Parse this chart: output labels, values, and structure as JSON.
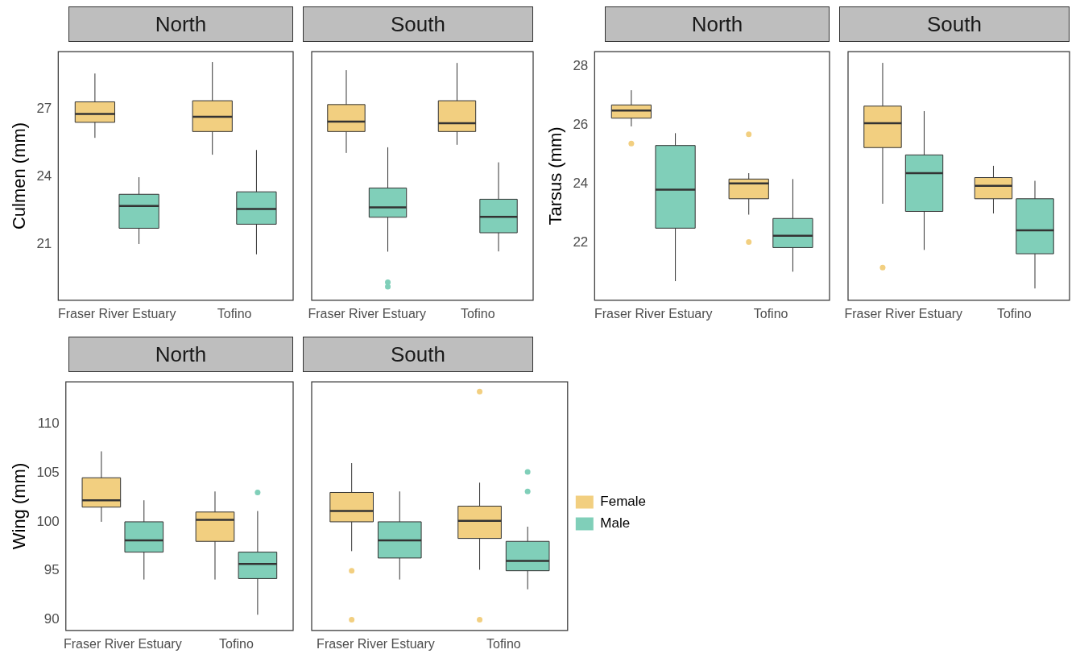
{
  "chart_data": [
    {
      "type": "box",
      "title": "North",
      "ylabel": "Culmen (mm)",
      "categories": [
        "Fraser River Estuary",
        "Tofino"
      ],
      "ylim": [
        18.5,
        29.55
      ],
      "yticks": [
        21,
        24,
        27
      ],
      "legend": false,
      "grid": false,
      "series": [
        {
          "color": "#f2cf80",
          "boxes": [
            {
              "low": 25.72,
              "q1": 26.41,
              "median": 26.78,
              "q3": 27.32,
              "high": 28.58
            },
            {
              "low": 24.97,
              "q1": 26.0,
              "median": 26.66,
              "q3": 27.37,
              "high": 29.09
            }
          ]
        },
        {
          "color": "#80cfb9",
          "boxes": [
            {
              "low": 21.0,
              "q1": 21.7,
              "median": 22.69,
              "q3": 23.21,
              "high": 23.97
            },
            {
              "low": 20.54,
              "q1": 21.88,
              "median": 22.56,
              "q3": 23.32,
              "high": 25.18
            }
          ]
        }
      ]
    },
    {
      "type": "box",
      "title": "South",
      "categories": [
        "Fraser River Estuary",
        "Tofino"
      ],
      "ylim": [
        18.5,
        29.55
      ],
      "yticks": [
        21,
        24,
        27
      ],
      "tick_labels": "x",
      "legend": false,
      "grid": false,
      "series": [
        {
          "color": "#f2cf80",
          "boxes": [
            {
              "low": 25.05,
              "q1": 26.0,
              "median": 26.44,
              "q3": 27.2,
              "high": 28.73
            },
            {
              "low": 25.41,
              "q1": 26.0,
              "median": 26.37,
              "q3": 27.37,
              "high": 29.05
            }
          ]
        },
        {
          "color": "#80cfb9",
          "boxes": [
            {
              "low": 20.66,
              "q1": 22.19,
              "median": 22.63,
              "q3": 23.49,
              "high": 25.3,
              "outliers": [
                19.3,
                19.1
              ]
            },
            {
              "low": 20.67,
              "q1": 21.5,
              "median": 22.21,
              "q3": 22.99,
              "high": 24.63
            }
          ]
        }
      ]
    },
    {
      "type": "box",
      "title": "North",
      "ylabel": "Tarsus (mm)",
      "categories": [
        "Fraser River Estuary",
        "Tofino"
      ],
      "ylim": [
        20.05,
        28.5
      ],
      "yticks": [
        22,
        24,
        26,
        28
      ],
      "legend": false,
      "grid": false,
      "series": [
        {
          "color": "#f2cf80",
          "boxes": [
            {
              "low": 25.96,
              "q1": 26.24,
              "median": 26.5,
              "q3": 26.69,
              "high": 27.19,
              "outliers": [
                25.38
              ]
            },
            {
              "low": 22.96,
              "q1": 23.5,
              "median": 24.02,
              "q3": 24.17,
              "high": 24.37,
              "outliers": [
                25.69,
                22.03
              ]
            }
          ]
        },
        {
          "color": "#80cfb9",
          "boxes": [
            {
              "low": 20.7,
              "q1": 22.5,
              "median": 23.81,
              "q3": 25.31,
              "high": 25.73
            },
            {
              "low": 21.02,
              "q1": 21.84,
              "median": 22.24,
              "q3": 22.83,
              "high": 24.17
            }
          ]
        }
      ]
    },
    {
      "type": "box",
      "title": "South",
      "categories": [
        "Fraser River Estuary",
        "Tofino"
      ],
      "ylim": [
        20.05,
        28.5
      ],
      "yticks": [
        22,
        24,
        26,
        28
      ],
      "tick_labels": "x",
      "legend": false,
      "grid": false,
      "series": [
        {
          "color": "#f2cf80",
          "boxes": [
            {
              "low": 23.33,
              "q1": 25.24,
              "median": 26.07,
              "q3": 26.65,
              "high": 28.12,
              "outliers": [
                21.16
              ]
            },
            {
              "low": 23.0,
              "q1": 23.5,
              "median": 23.94,
              "q3": 24.22,
              "high": 24.62
            }
          ]
        },
        {
          "color": "#80cfb9",
          "boxes": [
            {
              "low": 21.76,
              "q1": 23.07,
              "median": 24.37,
              "q3": 24.99,
              "high": 26.48
            },
            {
              "low": 20.45,
              "q1": 21.63,
              "median": 22.43,
              "q3": 23.5,
              "high": 24.11
            }
          ]
        }
      ]
    },
    {
      "type": "box",
      "title": "North",
      "ylabel": "Wing (mm)",
      "categories": [
        "Fraser River Estuary",
        "Tofino"
      ],
      "ylim": [
        88.9,
        114.3
      ],
      "yticks": [
        90,
        95,
        100,
        105,
        110
      ],
      "legend": false,
      "grid": false,
      "series": [
        {
          "color": "#f2cf80",
          "boxes": [
            {
              "low": 100.0,
              "q1": 101.5,
              "median": 102.2,
              "q3": 104.5,
              "high": 107.2
            },
            {
              "low": 94.1,
              "q1": 98.0,
              "median": 100.2,
              "q3": 101.0,
              "high": 103.1
            }
          ]
        },
        {
          "color": "#80cfb9",
          "boxes": [
            {
              "low": 94.1,
              "q1": 96.9,
              "median": 98.1,
              "q3": 100.0,
              "high": 102.2
            },
            {
              "low": 90.5,
              "q1": 94.2,
              "median": 95.7,
              "q3": 96.9,
              "high": 101.1,
              "outliers": [
                103.0
              ]
            }
          ]
        }
      ]
    },
    {
      "type": "box",
      "title": "South",
      "categories": [
        "Fraser River Estuary",
        "Tofino"
      ],
      "ylim": [
        88.9,
        114.3
      ],
      "yticks": [
        90,
        95,
        100,
        105,
        110
      ],
      "tick_labels": "x",
      "legend": "right",
      "grid": false,
      "series": [
        {
          "name": "Female",
          "color": "#f2cf80",
          "boxes": [
            {
              "low": 97.0,
              "q1": 100.0,
              "median": 101.1,
              "q3": 103.0,
              "high": 106.0,
              "outliers": [
                95.0,
                90.0
              ]
            },
            {
              "low": 95.1,
              "q1": 98.3,
              "median": 100.1,
              "q3": 101.6,
              "high": 104.0,
              "outliers": [
                113.3,
                90.0
              ]
            }
          ]
        },
        {
          "name": "Male",
          "color": "#80cfb9",
          "boxes": [
            {
              "low": 94.1,
              "q1": 96.3,
              "median": 98.1,
              "q3": 100.0,
              "high": 103.1
            },
            {
              "low": 93.1,
              "q1": 95.0,
              "median": 96.0,
              "q3": 98.0,
              "high": 99.5,
              "outliers": [
                105.1,
                103.1
              ]
            }
          ]
        }
      ]
    }
  ]
}
